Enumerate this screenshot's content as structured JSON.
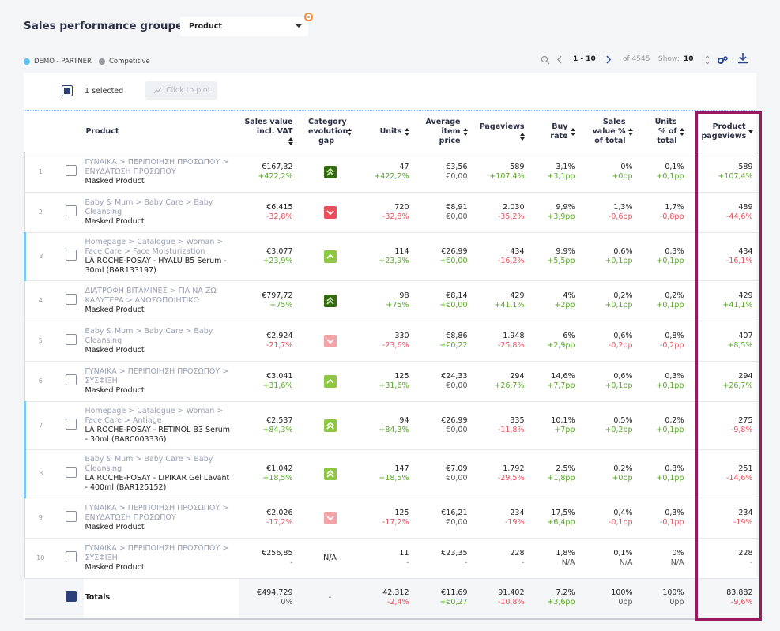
{
  "header": {
    "title": "Sales performance grouped by",
    "group_select": "Product"
  },
  "legend": [
    "DEMO - PARTNER",
    "Competitive"
  ],
  "pagination": {
    "range": "1 - 10",
    "total": "of 4545",
    "show_label": "Show:",
    "show_value": "10"
  },
  "toolbar": {
    "selected": "1 selected",
    "plot_button": "Click to plot"
  },
  "table": {
    "columns": [
      "Product",
      "Sales value incl. VAT",
      "Category evolution gap",
      "Units",
      "Average item price",
      "Pageviews",
      "Buy rate",
      "Sales value % of total",
      "Units % of total",
      "Product pageviews"
    ],
    "rows": [
      {
        "index": "1",
        "category": "ΓΥΝΑΙΚΑ > ΠΕΡΙΠΟΙΗΣΗ ΠΡΟΣΩΠΟΥ > ΕΝΥΔΑΤΩΣΗ ΠΡΟΣΩΠΟΥ",
        "name": "Masked Product",
        "gap": {
          "icon": "double-up",
          "color": "#356b0f"
        },
        "cells": [
          {
            "value": "€167,32",
            "delta": "+422,2%"
          },
          {
            "value": "47",
            "delta": "+422,2%"
          },
          {
            "value": "€3,56",
            "delta": "€0,00"
          },
          {
            "value": "589",
            "delta": "+107,4%"
          },
          {
            "value": "3,1%",
            "delta": "+3,1pp"
          },
          {
            "value": "0%",
            "delta": "+0pp"
          },
          {
            "value": "0,1%",
            "delta": "+0,1pp"
          },
          {
            "value": "589",
            "delta": "+107,4%"
          }
        ]
      },
      {
        "index": "2",
        "category": "Baby & Mum > Baby Care > Baby Cleansing",
        "name": "Masked Product",
        "gap": {
          "icon": "down",
          "color": "#e8505b"
        },
        "cells": [
          {
            "value": "€6.415",
            "delta": "-32,8%"
          },
          {
            "value": "720",
            "delta": "-32,8%"
          },
          {
            "value": "€8,91",
            "delta": "€0,00"
          },
          {
            "value": "2.030",
            "delta": "-35,2%"
          },
          {
            "value": "9,9%",
            "delta": "+3,9pp"
          },
          {
            "value": "1,3%",
            "delta": "-0,6pp"
          },
          {
            "value": "1,7%",
            "delta": "-0,8pp"
          },
          {
            "value": "489",
            "delta": "-44,6%"
          }
        ]
      },
      {
        "index": "3",
        "category": "Homepage > Catalogue > Woman > Face Care > Face Moisturization",
        "name": "LA ROCHE-POSAY - HYALU B5 Serum - 30ml (BAR133197)",
        "gap": {
          "icon": "up",
          "color": "#8dc63f"
        },
        "cells": [
          {
            "value": "€3.077",
            "delta": "+23,9%"
          },
          {
            "value": "114",
            "delta": "+23,9%"
          },
          {
            "value": "€26,99",
            "delta": "+€0,00"
          },
          {
            "value": "434",
            "delta": "-16,2%"
          },
          {
            "value": "9,9%",
            "delta": "+5,5pp"
          },
          {
            "value": "0,6%",
            "delta": "+0,1pp"
          },
          {
            "value": "0,3%",
            "delta": "+0,1pp"
          },
          {
            "value": "434",
            "delta": "-16,1%"
          }
        ]
      },
      {
        "index": "4",
        "category": "ΔΙΑΤΡΟΦΗ ΒΙΤΑΜΙΝΕΣ > ΓΙΑ ΝΑ ΖΩ ΚΑΛΥΤΕΡΑ > ΑΝΟΣΟΠΟΙΗΤΙΚΟ",
        "name": "Masked Product",
        "gap": {
          "icon": "double-up",
          "color": "#356b0f"
        },
        "cells": [
          {
            "value": "€797,72",
            "delta": "+75%"
          },
          {
            "value": "98",
            "delta": "+75%"
          },
          {
            "value": "€8,14",
            "delta": "+€0,00"
          },
          {
            "value": "429",
            "delta": "+41,1%"
          },
          {
            "value": "4%",
            "delta": "+2pp"
          },
          {
            "value": "0,2%",
            "delta": "+0,1pp"
          },
          {
            "value": "0,2%",
            "delta": "+0,1pp"
          },
          {
            "value": "429",
            "delta": "+41,1%"
          }
        ]
      },
      {
        "index": "5",
        "category": "Baby & Mum > Baby Care > Baby Cleansing",
        "name": "Masked Product",
        "gap": {
          "icon": "down",
          "color": "#f3a3a6"
        },
        "cells": [
          {
            "value": "€2.924",
            "delta": "-21,7%"
          },
          {
            "value": "330",
            "delta": "-23,6%"
          },
          {
            "value": "€8,86",
            "delta": "+€0,22"
          },
          {
            "value": "1.948",
            "delta": "-25,8%"
          },
          {
            "value": "6%",
            "delta": "+2,9pp"
          },
          {
            "value": "0,6%",
            "delta": "-0,2pp"
          },
          {
            "value": "0,8%",
            "delta": "-0,2pp"
          },
          {
            "value": "407",
            "delta": "+8,5%"
          }
        ]
      },
      {
        "index": "6",
        "category": "ΓΥΝΑΙΚΑ > ΠΕΡΙΠΟΙΗΣΗ ΠΡΟΣΩΠΟΥ > ΣΥΣΦΙΞΗ",
        "name": "Masked Product",
        "gap": {
          "icon": "up",
          "color": "#8dc63f"
        },
        "cells": [
          {
            "value": "€3.041",
            "delta": "+31,6%"
          },
          {
            "value": "125",
            "delta": "+31,6%"
          },
          {
            "value": "€24,33",
            "delta": "€0,00"
          },
          {
            "value": "294",
            "delta": "+26,7%"
          },
          {
            "value": "14,6%",
            "delta": "+7,7pp"
          },
          {
            "value": "0,6%",
            "delta": "+0,1pp"
          },
          {
            "value": "0,3%",
            "delta": "+0,1pp"
          },
          {
            "value": "294",
            "delta": "+26,7%"
          }
        ]
      },
      {
        "index": "7",
        "category": "Homepage > Catalogue > Woman > Face Care > Antiage",
        "name": "LA ROCHE-POSAY - RETINOL B3 Serum - 30ml (BARC003336)",
        "gap": {
          "icon": "double-up",
          "color": "#8dc63f"
        },
        "cells": [
          {
            "value": "€2.537",
            "delta": "+84,3%"
          },
          {
            "value": "94",
            "delta": "+84,3%"
          },
          {
            "value": "€26,99",
            "delta": "€0,00"
          },
          {
            "value": "335",
            "delta": "-11,8%"
          },
          {
            "value": "10,1%",
            "delta": "+7pp"
          },
          {
            "value": "0,5%",
            "delta": "+0,2pp"
          },
          {
            "value": "0,2%",
            "delta": "+0,1pp"
          },
          {
            "value": "275",
            "delta": "-9,8%"
          }
        ]
      },
      {
        "index": "8",
        "category": "Baby & Mum > Baby Care > Baby Cleansing",
        "name": "LA ROCHE-POSAY - LIPIKAR Gel Lavant - 400ml (BAR125152)",
        "gap": {
          "icon": "double-up",
          "color": "#8dc63f"
        },
        "cells": [
          {
            "value": "€1.042",
            "delta": "+18,5%"
          },
          {
            "value": "147",
            "delta": "+18,5%"
          },
          {
            "value": "€7,09",
            "delta": "€0,00"
          },
          {
            "value": "1.792",
            "delta": "-29,5%"
          },
          {
            "value": "2,5%",
            "delta": "+1,8pp"
          },
          {
            "value": "0,2%",
            "delta": "+0pp"
          },
          {
            "value": "0,3%",
            "delta": "+0,1pp"
          },
          {
            "value": "251",
            "delta": "-14,6%"
          }
        ]
      },
      {
        "index": "9",
        "category": "ΓΥΝΑΙΚΑ > ΠΕΡΙΠΟΙΗΣΗ ΠΡΟΣΩΠΟΥ > ΕΝΥΔΑΤΩΣΗ ΠΡΟΣΩΠΟΥ",
        "name": "Masked Product",
        "gap": {
          "icon": "down",
          "color": "#f3a3a6"
        },
        "cells": [
          {
            "value": "€2.026",
            "delta": "-17,2%"
          },
          {
            "value": "125",
            "delta": "-17,2%"
          },
          {
            "value": "€16,21",
            "delta": "€0,00"
          },
          {
            "value": "234",
            "delta": "-19%"
          },
          {
            "value": "17,5%",
            "delta": "+6,4pp"
          },
          {
            "value": "0,4%",
            "delta": "-0,1pp"
          },
          {
            "value": "0,3%",
            "delta": "-0,1pp"
          },
          {
            "value": "234",
            "delta": "-19%"
          }
        ]
      },
      {
        "index": "10",
        "category": "ΓΥΝΑΙΚΑ > ΠΕΡΙΠΟΙΗΣΗ ΠΡΟΣΩΠΟΥ > ΣΥΣΦΙΞΗ",
        "name": "Masked Product",
        "gap": "N/A",
        "cells": [
          {
            "value": "€256,85",
            "delta": "-"
          },
          {
            "value": "11",
            "delta": "-"
          },
          {
            "value": "€23,35",
            "delta": "-"
          },
          {
            "value": "228",
            "delta": "-"
          },
          {
            "value": "1,8%",
            "delta": "N/A"
          },
          {
            "value": "0,1%",
            "delta": "N/A"
          },
          {
            "value": "0%",
            "delta": "N/A"
          },
          {
            "value": "228",
            "delta": "-"
          }
        ]
      }
    ],
    "totals": {
      "label": "Totals",
      "gap": "-",
      "cells": [
        {
          "value": "€494.729",
          "delta": "0%"
        },
        {
          "value": "42.312",
          "delta": "-2,4%"
        },
        {
          "value": "€11,69",
          "delta": "+€0,27"
        },
        {
          "value": "91.402",
          "delta": "-10,8%"
        },
        {
          "value": "7,2%",
          "delta": "+3,6pp"
        },
        {
          "value": "100%",
          "delta": "0pp"
        },
        {
          "value": "100%",
          "delta": "0pp"
        },
        {
          "value": "83.882",
          "delta": "-9,6%"
        }
      ]
    }
  }
}
